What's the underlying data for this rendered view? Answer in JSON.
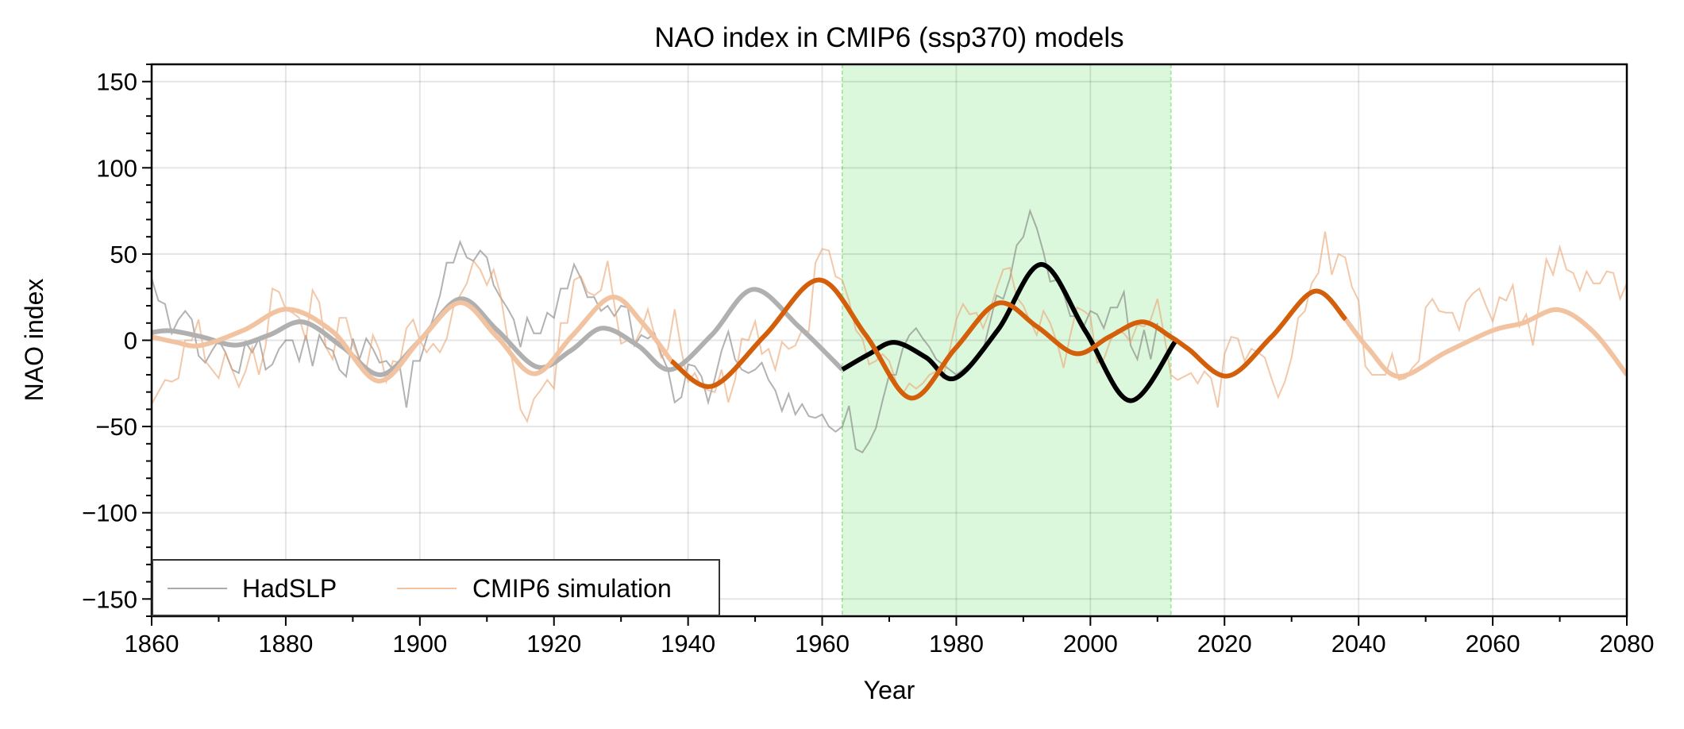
{
  "chart_data": {
    "type": "line",
    "title": "NAO index in CMIP6 (ssp370) models",
    "xlabel": "Year",
    "ylabel": "NAO index",
    "xlim": [
      1860,
      2080
    ],
    "ylim": [
      -160,
      160
    ],
    "grid": true,
    "xticks": [
      1860,
      1880,
      1900,
      1920,
      1940,
      1960,
      1980,
      2000,
      2020,
      2040,
      2060,
      2080
    ],
    "xtick_labels": [
      "1860",
      "1880",
      "1900",
      "1920",
      "1940",
      "1960",
      "1980",
      "2000",
      "2020",
      "2040",
      "2060",
      "2080"
    ],
    "x_minor_step": 10,
    "yticks": [
      -150,
      -100,
      -50,
      0,
      50,
      100,
      150
    ],
    "ytick_labels": [
      "−150",
      "−100",
      "−50",
      "0",
      "50",
      "100",
      "150"
    ],
    "y_minor_step": 10,
    "shaded_span": {
      "x0": 1963,
      "x1": 2012,
      "color": "#dcf8dc",
      "edge_color": "#a8e8a8",
      "label": ""
    },
    "legend": {
      "placement": "lower-left",
      "entries": [
        {
          "label": "HadSLP",
          "color": "#aaaaaa"
        },
        {
          "label": "CMIP6 simulation",
          "color": "#f2c3a0"
        }
      ]
    },
    "series": [
      {
        "name": "HadSLP",
        "kind": "raw",
        "color": "#7f7f7f",
        "opacity": 0.6,
        "x_start": 1860,
        "values": [
          36,
          23,
          21,
          4,
          12,
          17,
          12,
          -9,
          -13,
          -6,
          0,
          -7,
          -17,
          -19,
          -1,
          -7,
          1,
          -17,
          -14,
          -5,
          0,
          0,
          -12,
          3,
          -15,
          3,
          -4,
          -6,
          -17,
          -21,
          1,
          -11,
          1,
          -5,
          -13,
          -12,
          -17,
          -15,
          -39,
          -12,
          -12,
          1,
          13,
          26,
          45,
          45,
          57,
          48,
          46,
          52,
          48,
          32,
          25,
          19,
          12,
          -4,
          13,
          4,
          4,
          16,
          13,
          30,
          30,
          44,
          36,
          25,
          25,
          17,
          20,
          14,
          20,
          19,
          -3,
          3,
          1,
          4,
          -8,
          -17,
          -36,
          -33,
          -14,
          -15,
          -21,
          -36,
          -22,
          -6,
          5,
          -11,
          -17,
          -19,
          -17,
          -13,
          -23,
          -29,
          -41,
          -31,
          -43,
          -37,
          -44,
          -45,
          -43,
          -50,
          -53,
          -50,
          -38,
          -63,
          -65,
          -59,
          -51,
          -35,
          -20,
          -20,
          -5,
          3,
          7,
          1,
          -4,
          -11,
          -14,
          -17,
          -20,
          -17,
          -14,
          -10,
          -6,
          10,
          26,
          24,
          36,
          55,
          60,
          75,
          65,
          51,
          34,
          35,
          27,
          14,
          14,
          8,
          17,
          15,
          7,
          19,
          19,
          28,
          -3,
          -11,
          6,
          -11,
          10
        ]
      },
      {
        "name": "CMIP6 simulation",
        "kind": "raw",
        "color": "#eba370",
        "opacity": 0.6,
        "x_start": 1860,
        "values": [
          -37,
          -30,
          -23,
          -24,
          -22,
          0,
          0,
          12,
          -12,
          -17,
          -22,
          -7,
          -17,
          -27,
          -18,
          -4,
          -20,
          -3,
          30,
          28,
          18,
          16,
          13,
          0,
          29,
          22,
          -4,
          -11,
          13,
          13,
          -2,
          -11,
          -17,
          3,
          -6,
          -24,
          -12,
          -13,
          7,
          12,
          0,
          -7,
          -2,
          -7,
          1,
          19,
          26,
          33,
          46,
          41,
          32,
          41,
          27,
          3,
          -16,
          -40,
          -47,
          -34,
          -29,
          -23,
          -28,
          10,
          10,
          35,
          37,
          28,
          26,
          29,
          46,
          21,
          -2,
          0,
          -2,
          6,
          18,
          3,
          -10,
          -5,
          18,
          -6,
          -24,
          -19,
          -27,
          -29,
          -30,
          -17,
          -36,
          -23,
          1,
          0,
          11,
          -8,
          -5,
          -17,
          -1,
          -5,
          -3,
          6,
          5,
          45,
          53,
          52,
          37,
          35,
          23,
          6,
          1,
          -14,
          -12,
          -8,
          -12,
          -24,
          -31,
          -25,
          -28,
          -25,
          -20,
          -18,
          -22,
          -6,
          12,
          21,
          15,
          16,
          7,
          17,
          30,
          41,
          42,
          25,
          20,
          11,
          3,
          17,
          10,
          -1,
          -16,
          3,
          19,
          17,
          14,
          -13,
          -11,
          0,
          6,
          4,
          -1,
          9,
          8,
          12,
          24,
          3,
          -20,
          -23,
          -21,
          -19,
          -25,
          -18,
          -22,
          -39,
          -8,
          2,
          1,
          -12,
          -5,
          -7,
          -10,
          -22,
          -33,
          -24,
          -10,
          13,
          17,
          33,
          39,
          63,
          38,
          50,
          48,
          31,
          23,
          -15,
          -20,
          -20,
          -20,
          -8,
          -23,
          -22,
          -16,
          -12,
          19,
          24,
          17,
          16,
          16,
          6,
          22,
          27,
          30,
          20,
          11,
          25,
          23,
          32,
          8,
          15,
          -3,
          23,
          47,
          38,
          54,
          41,
          39,
          29,
          40,
          33,
          33,
          40,
          39,
          24,
          33
        ]
      },
      {
        "name": "HadSLP smoothed",
        "kind": "smooth",
        "color": "#b0b0b0",
        "knots": [
          [
            1860,
            4.5
          ],
          [
            1862.8,
            5.5
          ],
          [
            1867.5,
            2
          ],
          [
            1872.5,
            -2.8
          ],
          [
            1877.5,
            3
          ],
          [
            1882.6,
            10.6
          ],
          [
            1888.5,
            -4
          ],
          [
            1894.2,
            -20
          ],
          [
            1900,
            0
          ],
          [
            1906,
            24
          ],
          [
            1911.5,
            6
          ],
          [
            1917.5,
            -15.5
          ],
          [
            1922.5,
            -6
          ],
          [
            1927.2,
            7
          ],
          [
            1932.5,
            -3
          ],
          [
            1937.4,
            -17
          ],
          [
            1943.5,
            3
          ],
          [
            1949.7,
            29.5
          ],
          [
            1956.5,
            8
          ],
          [
            1963,
            -17
          ]
        ]
      },
      {
        "name": "HadSLP smoothed (reference period)",
        "kind": "smooth",
        "color": "#000000",
        "knots": [
          [
            1963,
            -17
          ],
          [
            1967,
            -8
          ],
          [
            1970.8,
            -1.2
          ],
          [
            1975.5,
            -10
          ],
          [
            1979.8,
            -22
          ],
          [
            1986.2,
            6
          ],
          [
            1992.7,
            44
          ],
          [
            1999.3,
            5
          ],
          [
            2005.9,
            -35
          ],
          [
            2012.6,
            -1
          ]
        ]
      },
      {
        "name": "CMIP6 smoothed",
        "kind": "smooth",
        "color": "#f2c3a0",
        "knots": [
          [
            1860,
            2
          ],
          [
            1863.5,
            -1
          ],
          [
            1867.3,
            -3
          ],
          [
            1873.8,
            6
          ],
          [
            1880.2,
            18
          ],
          [
            1887,
            5
          ],
          [
            1893.8,
            -23.6
          ],
          [
            1900,
            0
          ],
          [
            1906,
            21.8
          ],
          [
            1911.5,
            2
          ],
          [
            1917.1,
            -19.4
          ],
          [
            1922.8,
            3
          ],
          [
            1928.6,
            25
          ],
          [
            1933.2,
            10
          ],
          [
            1937.5,
            -12
          ]
        ]
      },
      {
        "name": "CMIP6 smoothed (dark)",
        "kind": "smooth",
        "color": "#d35f0a",
        "knots": [
          [
            1937.5,
            -12
          ],
          [
            1943.6,
            -26.6
          ],
          [
            1951.5,
            3
          ],
          [
            1959.5,
            35
          ],
          [
            1966.5,
            3
          ],
          [
            1973.2,
            -33.5
          ],
          [
            1979.8,
            -5
          ],
          [
            1986.2,
            21.5
          ],
          [
            1992,
            8
          ],
          [
            1997.8,
            -7.7
          ],
          [
            2002.8,
            2
          ],
          [
            2007.7,
            10.7
          ],
          [
            2012,
            2
          ],
          [
            2014.6,
            -5
          ],
          [
            2020.5,
            -20.7
          ],
          [
            2027,
            2
          ],
          [
            2033.4,
            28.4
          ],
          [
            2038.1,
            12
          ]
        ]
      },
      {
        "name": "CMIP6 smoothed (late)",
        "kind": "smooth",
        "color": "#f2c3a0",
        "knots": [
          [
            2038.1,
            12
          ],
          [
            2041.5,
            -5
          ],
          [
            2046,
            -21
          ],
          [
            2053,
            -7
          ],
          [
            2060,
            5.7
          ],
          [
            2064.5,
            10
          ],
          [
            2069.8,
            17.7
          ],
          [
            2075,
            5
          ],
          [
            2080,
            -20
          ]
        ]
      }
    ]
  }
}
